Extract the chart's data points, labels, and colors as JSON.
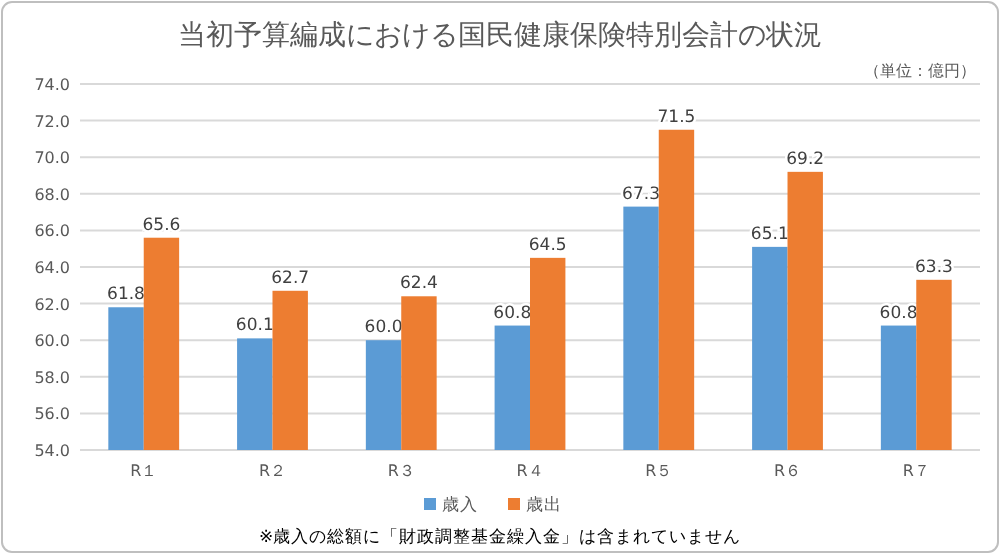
{
  "chart_data": {
    "type": "bar",
    "title": "当初予算編成における国民健康保険特別会計の状況",
    "annotations": [
      "（単位：億円）",
      "※歳入の総額に「財政調整基金繰入金」は含まれていません"
    ],
    "categories": [
      "R１",
      "R２",
      "R３",
      "R４",
      "R５",
      "R６",
      "R７"
    ],
    "series": [
      {
        "name": "歳入",
        "color": "#5b9bd5",
        "values": [
          61.8,
          60.1,
          60.0,
          60.8,
          67.3,
          65.1,
          60.8
        ],
        "value_labels": [
          "61.8",
          "60.1",
          "60.0",
          "60.8",
          "67.3",
          "65.1",
          "60.8"
        ]
      },
      {
        "name": "歳出",
        "color": "#ed7d31",
        "values": [
          65.6,
          62.7,
          62.4,
          64.5,
          71.5,
          69.2,
          63.3
        ],
        "value_labels": [
          "65.6",
          "62.7",
          "62.4",
          "64.5",
          "71.5",
          "69.2",
          "63.3"
        ]
      }
    ],
    "ylim": [
      54,
      74
    ],
    "yticks": [
      {
        "value": 54,
        "label": "54.0"
      },
      {
        "value": 56,
        "label": "56.0"
      },
      {
        "value": 58,
        "label": "58.0"
      },
      {
        "value": 60,
        "label": "60.0"
      },
      {
        "value": 62,
        "label": "62.0"
      },
      {
        "value": 64,
        "label": "64.0"
      },
      {
        "value": 66,
        "label": "66.0"
      },
      {
        "value": 68,
        "label": "68.0"
      },
      {
        "value": 70,
        "label": "70.0"
      },
      {
        "value": 72,
        "label": "72.0"
      },
      {
        "value": 74,
        "label": "74.0"
      }
    ],
    "grid": "y",
    "legend": "bottom"
  }
}
